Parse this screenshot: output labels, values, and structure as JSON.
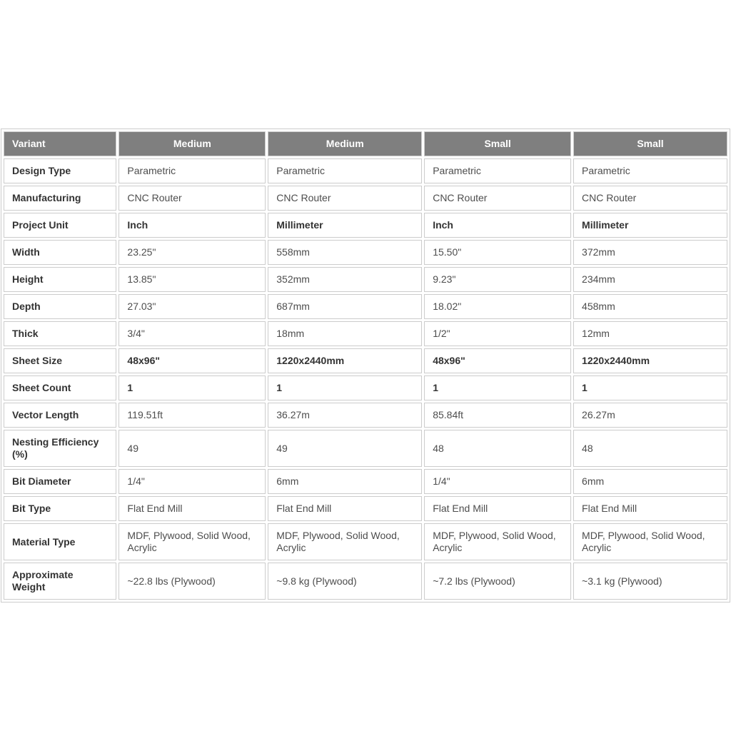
{
  "table": {
    "columns": [
      "Variant",
      "Medium",
      "Medium",
      "Small",
      "Small"
    ],
    "rows": [
      {
        "label": "Design Type",
        "bold": false,
        "values": [
          "Parametric",
          "Parametric",
          "Parametric",
          "Parametric"
        ]
      },
      {
        "label": "Manufacturing",
        "bold": false,
        "values": [
          "CNC Router",
          "CNC Router",
          "CNC Router",
          "CNC Router"
        ]
      },
      {
        "label": "Project Unit",
        "bold": true,
        "values": [
          "Inch",
          "Millimeter",
          "Inch",
          "Millimeter"
        ]
      },
      {
        "label": "Width",
        "bold": false,
        "values": [
          "23.25\"",
          "558mm",
          "15.50\"",
          "372mm"
        ]
      },
      {
        "label": "Height",
        "bold": false,
        "values": [
          "13.85\"",
          "352mm",
          "9.23\"",
          "234mm"
        ]
      },
      {
        "label": "Depth",
        "bold": false,
        "values": [
          "27.03\"",
          "687mm",
          "18.02\"",
          "458mm"
        ]
      },
      {
        "label": "Thick",
        "bold": false,
        "values": [
          "3/4\"",
          "18mm",
          "1/2\"",
          "12mm"
        ]
      },
      {
        "label": "Sheet Size",
        "bold": true,
        "values": [
          "48x96\"",
          "1220x2440mm",
          "48x96\"",
          "1220x2440mm"
        ]
      },
      {
        "label": "Sheet Count",
        "bold": true,
        "values": [
          "1",
          "1",
          "1",
          "1"
        ]
      },
      {
        "label": "Vector Length",
        "bold": false,
        "values": [
          "119.51ft",
          "36.27m",
          "85.84ft",
          "26.27m"
        ]
      },
      {
        "label": "Nesting Efficiency (%)",
        "bold": false,
        "values": [
          "49",
          "49",
          "48",
          "48"
        ]
      },
      {
        "label": "Bit Diameter",
        "bold": false,
        "values": [
          "1/4\"",
          "6mm",
          "1/4\"",
          "6mm"
        ]
      },
      {
        "label": "Bit Type",
        "bold": false,
        "values": [
          "Flat End Mill",
          "Flat End Mill",
          "Flat End Mill",
          "Flat End Mill"
        ]
      },
      {
        "label": "Material Type",
        "bold": false,
        "values": [
          "MDF, Plywood, Solid Wood, Acrylic",
          "MDF, Plywood, Solid Wood, Acrylic",
          "MDF, Plywood, Solid Wood, Acrylic",
          "MDF, Plywood, Solid Wood, Acrylic"
        ]
      },
      {
        "label": "Approximate Weight",
        "bold": false,
        "values": [
          "~22.8 lbs (Plywood)",
          "~9.8 kg (Plywood)",
          "~7.2 lbs (Plywood)",
          "~3.1 kg (Plywood)"
        ]
      }
    ],
    "colors": {
      "header_bg": "#7f7f7f",
      "header_text": "#ffffff",
      "border": "#cccccc",
      "label_text": "#333333",
      "value_text": "#4d4d4d"
    }
  }
}
